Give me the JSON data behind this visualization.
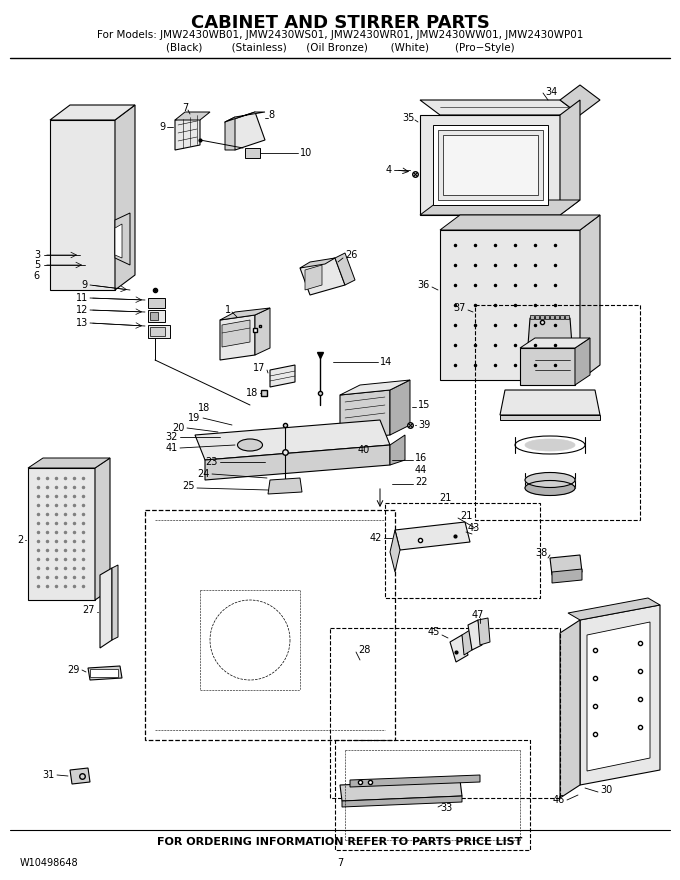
{
  "title": "CABINET AND STIRRER PARTS",
  "subtitle": "For Models: JMW2430WB01, JMW2430WS01, JMW2430WR01, JMW2430WW01, JMW2430WP01",
  "subtitle2": "(Black)          (Stainless)       (Oil Bronze)        (White)          (Pro−Style)",
  "footer": "FOR ORDERING INFORMATION REFER TO PARTS PRICE LIST",
  "part_number": "W10498648",
  "page": "7",
  "bg_color": "#ffffff",
  "lc": "#000000",
  "gray1": "#b0b0b0",
  "gray2": "#d0d0d0",
  "gray3": "#e8e8e8"
}
